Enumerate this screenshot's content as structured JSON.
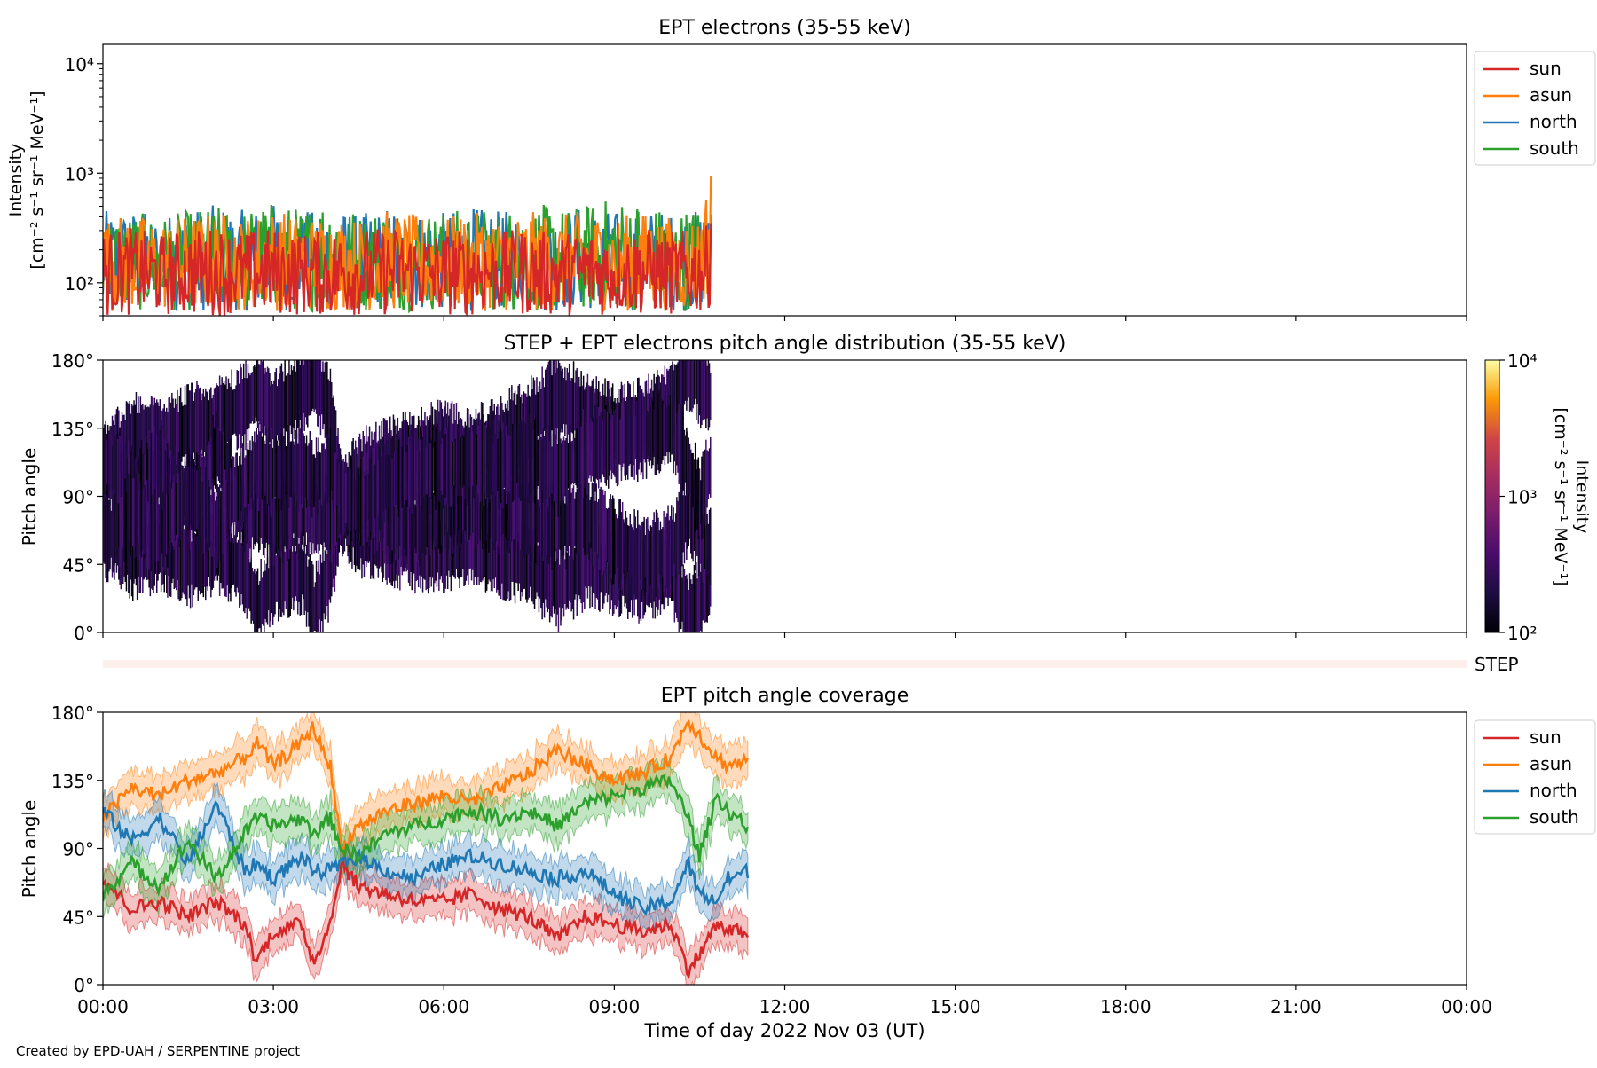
{
  "figure": {
    "credit": "Created by EPD-UAH / SERPENTINE project",
    "time_xlabel": "Time of day 2022 Nov 03 (UT)",
    "time_ticks": [
      "00:00",
      "03:00",
      "06:00",
      "09:00",
      "12:00",
      "15:00",
      "18:00",
      "21:00",
      "00:00"
    ],
    "colors": {
      "sun": "#d62728",
      "asun": "#ff7f0e",
      "north": "#1f77b4",
      "south": "#2ca02c"
    }
  },
  "chart_data": [
    {
      "type": "line",
      "title": "EPT electrons (35-55 keV)",
      "ylabel_line1": "Intensity",
      "ylabel_line2": "[cm⁻² s⁻¹ sr⁻¹ MeV⁻¹]",
      "yscale": "log",
      "ylim": [
        50,
        15000
      ],
      "yticks": [
        {
          "value": 100,
          "label": "10²"
        },
        {
          "value": 1000,
          "label": "10³"
        },
        {
          "value": 10000,
          "label": "10⁴"
        }
      ],
      "xlim_hours": [
        0,
        24
      ],
      "legend": {
        "placement": "outside-upper-right",
        "entries": [
          "sun",
          "asun",
          "north",
          "south"
        ]
      },
      "series": [
        {
          "name": "sun",
          "x_hours": [
            0.0,
            0.5,
            1.0,
            1.5,
            2.0,
            2.5,
            3.0,
            3.5,
            4.0,
            4.5,
            5.0,
            5.5,
            6.0,
            6.5,
            7.0,
            7.5,
            8.0,
            8.5,
            9.0,
            9.5,
            10.0,
            10.5,
            10.7
          ],
          "y": [
            110,
            130,
            95,
            140,
            120,
            105,
            150,
            115,
            125,
            100,
            135,
            110,
            120,
            145,
            105,
            130,
            115,
            125,
            110,
            140,
            120,
            130,
            200
          ],
          "y_min": [
            50,
            50,
            50,
            50,
            50,
            50,
            50,
            50,
            50,
            50,
            50,
            50,
            50,
            50,
            50,
            50,
            50,
            50,
            50,
            50,
            50,
            50,
            60
          ],
          "y_max": [
            300,
            320,
            280,
            310,
            330,
            300,
            320,
            290,
            310,
            300,
            330,
            310,
            300,
            320,
            300,
            310,
            290,
            310,
            300,
            320,
            300,
            310,
            350
          ]
        },
        {
          "name": "asun",
          "x_hours": [
            0.0,
            0.5,
            1.0,
            1.5,
            2.0,
            2.5,
            3.0,
            3.5,
            4.0,
            4.5,
            5.0,
            5.5,
            6.0,
            6.5,
            7.0,
            7.5,
            8.0,
            8.5,
            9.0,
            9.5,
            10.0,
            10.5,
            10.7
          ],
          "y": [
            140,
            160,
            130,
            170,
            150,
            140,
            180,
            150,
            160,
            130,
            170,
            140,
            150,
            180,
            140,
            160,
            150,
            160,
            140,
            170,
            150,
            160,
            250
          ],
          "y_min": [
            55,
            55,
            55,
            55,
            55,
            55,
            55,
            55,
            55,
            55,
            55,
            55,
            55,
            55,
            55,
            55,
            55,
            55,
            55,
            55,
            55,
            55,
            80
          ],
          "y_max": [
            400,
            430,
            380,
            420,
            450,
            400,
            480,
            410,
            430,
            390,
            460,
            420,
            400,
            440,
            410,
            450,
            420,
            460,
            410,
            450,
            400,
            420,
            950
          ]
        },
        {
          "name": "north",
          "x_hours": [
            0.0,
            0.5,
            1.0,
            1.5,
            2.0,
            2.5,
            3.0,
            3.5,
            4.0,
            4.5,
            5.0,
            5.5,
            6.0,
            6.5,
            7.0,
            7.5,
            8.0,
            8.5,
            9.0,
            9.5,
            10.0,
            10.5,
            10.7
          ],
          "y": [
            130,
            150,
            120,
            160,
            140,
            130,
            170,
            140,
            150,
            120,
            160,
            130,
            140,
            170,
            130,
            150,
            140,
            150,
            130,
            160,
            140,
            150,
            180
          ],
          "y_min": [
            55,
            55,
            55,
            55,
            55,
            55,
            55,
            55,
            55,
            55,
            55,
            55,
            55,
            55,
            55,
            55,
            55,
            55,
            55,
            55,
            55,
            55,
            70
          ],
          "y_max": [
            450,
            480,
            420,
            470,
            520,
            460,
            540,
            450,
            480,
            420,
            500,
            460,
            440,
            490,
            450,
            500,
            470,
            510,
            450,
            490,
            440,
            470,
            400
          ]
        },
        {
          "name": "south",
          "x_hours": [
            0.0,
            0.5,
            1.0,
            1.5,
            2.0,
            2.5,
            3.0,
            3.5,
            4.0,
            4.5,
            5.0,
            5.5,
            6.0,
            6.5,
            7.0,
            7.5,
            8.0,
            8.5,
            9.0,
            9.5,
            10.0,
            10.5,
            10.7
          ],
          "y": [
            135,
            155,
            125,
            165,
            145,
            135,
            175,
            145,
            155,
            125,
            165,
            135,
            145,
            175,
            135,
            155,
            145,
            155,
            135,
            165,
            145,
            155,
            190
          ],
          "y_min": [
            55,
            55,
            55,
            55,
            55,
            55,
            55,
            55,
            55,
            55,
            55,
            55,
            55,
            55,
            55,
            55,
            55,
            55,
            55,
            55,
            55,
            55,
            70
          ],
          "y_max": [
            420,
            450,
            400,
            460,
            500,
            470,
            560,
            480,
            700,
            430,
            520,
            460,
            450,
            500,
            460,
            560,
            480,
            520,
            620,
            560,
            450,
            520,
            420
          ]
        }
      ]
    },
    {
      "type": "heatmap",
      "title": "STEP + EPT electrons pitch angle distribution (35-55 keV)",
      "ylabel": "Pitch angle",
      "ylim": [
        0,
        180
      ],
      "yticks": [
        "0°",
        "45°",
        "90°",
        "135°",
        "180°"
      ],
      "ytick_values": [
        0,
        45,
        90,
        135,
        180
      ],
      "xlim_hours": [
        0,
        24
      ],
      "colorbar": {
        "label_line1": "Intensity",
        "label_line2": "[cm⁻² s⁻¹ sr⁻¹ MeV⁻¹]",
        "scale": "log",
        "range": [
          100,
          10000
        ],
        "ticks": [
          {
            "value": 100,
            "label": "10²"
          },
          {
            "value": 1000,
            "label": "10³"
          },
          {
            "value": 10000,
            "label": "10⁴"
          }
        ],
        "colormap": "inferno"
      },
      "data_extent_hours": [
        0,
        10.7
      ],
      "step_label": "STEP",
      "step_bar_color": "#fdf0ec"
    },
    {
      "type": "line",
      "title": "EPT pitch angle coverage",
      "ylabel": "Pitch angle",
      "ylim": [
        0,
        180
      ],
      "yticks": [
        "0°",
        "45°",
        "90°",
        "135°",
        "180°"
      ],
      "ytick_values": [
        0,
        45,
        90,
        135,
        180
      ],
      "xlim_hours": [
        0,
        24
      ],
      "legend": {
        "placement": "outside-upper-right",
        "entries": [
          "sun",
          "asun",
          "north",
          "south"
        ]
      },
      "series": [
        {
          "name": "sun",
          "x_hours": [
            0.0,
            0.5,
            1.0,
            1.5,
            2.0,
            2.5,
            2.7,
            3.0,
            3.5,
            3.7,
            4.0,
            4.2,
            4.5,
            5.0,
            5.5,
            6.0,
            6.5,
            7.0,
            7.5,
            8.0,
            8.5,
            9.0,
            9.5,
            10.0,
            10.3,
            10.5,
            10.8,
            11.0,
            11.35
          ],
          "y": [
            70,
            50,
            55,
            45,
            55,
            40,
            15,
            35,
            40,
            15,
            40,
            80,
            65,
            60,
            55,
            55,
            60,
            50,
            45,
            30,
            45,
            40,
            35,
            40,
            10,
            20,
            40,
            35,
            35
          ],
          "spread": 12
        },
        {
          "name": "asun",
          "x_hours": [
            0.0,
            0.5,
            1.0,
            1.5,
            2.0,
            2.5,
            2.7,
            3.0,
            3.5,
            3.7,
            4.0,
            4.2,
            4.5,
            5.0,
            5.5,
            6.0,
            6.5,
            7.0,
            7.5,
            8.0,
            8.5,
            9.0,
            9.5,
            10.0,
            10.3,
            10.5,
            10.8,
            11.0,
            11.35
          ],
          "y": [
            110,
            130,
            125,
            135,
            140,
            150,
            160,
            145,
            160,
            170,
            145,
            90,
            105,
            115,
            120,
            125,
            120,
            130,
            140,
            155,
            145,
            135,
            140,
            150,
            175,
            165,
            150,
            145,
            148
          ],
          "spread": 12
        },
        {
          "name": "north",
          "x_hours": [
            0.0,
            0.5,
            1.0,
            1.5,
            2.0,
            2.5,
            2.7,
            3.0,
            3.5,
            3.7,
            4.0,
            4.2,
            4.5,
            5.0,
            5.5,
            6.0,
            6.5,
            7.0,
            7.5,
            8.0,
            8.5,
            9.0,
            9.5,
            10.0,
            10.3,
            10.5,
            10.8,
            11.0,
            11.35
          ],
          "y": [
            115,
            95,
            110,
            80,
            120,
            75,
            80,
            70,
            85,
            75,
            75,
            80,
            85,
            75,
            70,
            80,
            85,
            80,
            75,
            70,
            75,
            60,
            50,
            55,
            80,
            60,
            55,
            70,
            75
          ],
          "spread": 12
        },
        {
          "name": "south",
          "x_hours": [
            0.0,
            0.5,
            1.0,
            1.5,
            2.0,
            2.5,
            2.7,
            3.0,
            3.5,
            3.7,
            4.0,
            4.2,
            4.5,
            5.0,
            5.5,
            6.0,
            6.5,
            7.0,
            7.5,
            8.0,
            8.5,
            9.0,
            9.5,
            10.0,
            10.3,
            10.5,
            10.8,
            11.0,
            11.35
          ],
          "y": [
            60,
            80,
            65,
            95,
            70,
            100,
            110,
            105,
            110,
            100,
            110,
            90,
            85,
            100,
            105,
            110,
            115,
            110,
            115,
            105,
            120,
            125,
            130,
            135,
            110,
            85,
            125,
            115,
            105
          ],
          "spread": 12
        }
      ]
    }
  ]
}
